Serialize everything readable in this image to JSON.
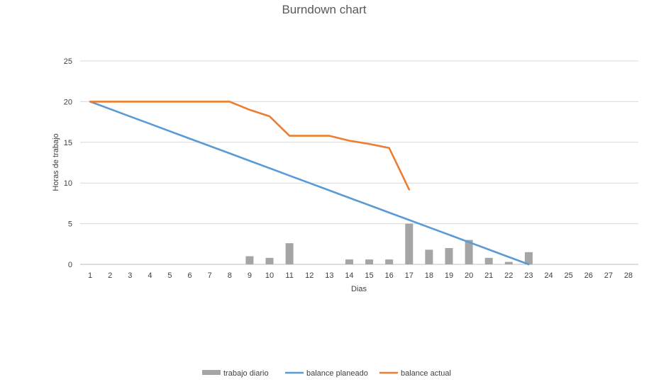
{
  "chart_data": {
    "type": "bar+line",
    "title": "Burndown chart",
    "xlabel": "Dias",
    "ylabel": "Horas de trabajo",
    "ylim": [
      0,
      25
    ],
    "y_ticks": [
      0,
      5,
      10,
      15,
      20,
      25
    ],
    "grid": "horizontal",
    "legend_position": "bottom",
    "categories": [
      1,
      2,
      3,
      4,
      5,
      6,
      7,
      8,
      9,
      10,
      11,
      12,
      13,
      14,
      15,
      16,
      17,
      18,
      19,
      20,
      21,
      22,
      23,
      24,
      25,
      26,
      27,
      28
    ],
    "series": [
      {
        "name": "trabajo diario",
        "type": "bar",
        "color": "#a5a5a5",
        "values": [
          0,
          0,
          0,
          0,
          0,
          0,
          0,
          0,
          1,
          0.8,
          2.6,
          0,
          0,
          0.6,
          0.6,
          0.6,
          5,
          1.8,
          2,
          3,
          0.8,
          0.3,
          1.5,
          null,
          null,
          null,
          null,
          null
        ]
      },
      {
        "name": "balance planeado",
        "type": "line",
        "color": "#5b9bd5",
        "values": [
          20,
          19.09,
          18.18,
          17.27,
          16.36,
          15.45,
          14.55,
          13.64,
          12.73,
          11.82,
          10.91,
          10,
          9.09,
          8.18,
          7.27,
          6.36,
          5.45,
          4.55,
          3.64,
          2.73,
          1.82,
          0.91,
          0,
          null,
          null,
          null,
          null,
          null
        ]
      },
      {
        "name": "balance actual",
        "type": "line",
        "color": "#ed7d31",
        "values": [
          20,
          20,
          20,
          20,
          20,
          20,
          20,
          20,
          19,
          18.2,
          15.8,
          15.8,
          15.8,
          15.2,
          14.8,
          14.3,
          9.2,
          null,
          null,
          null,
          null,
          null,
          null,
          null,
          null,
          null,
          null,
          null
        ]
      }
    ]
  }
}
